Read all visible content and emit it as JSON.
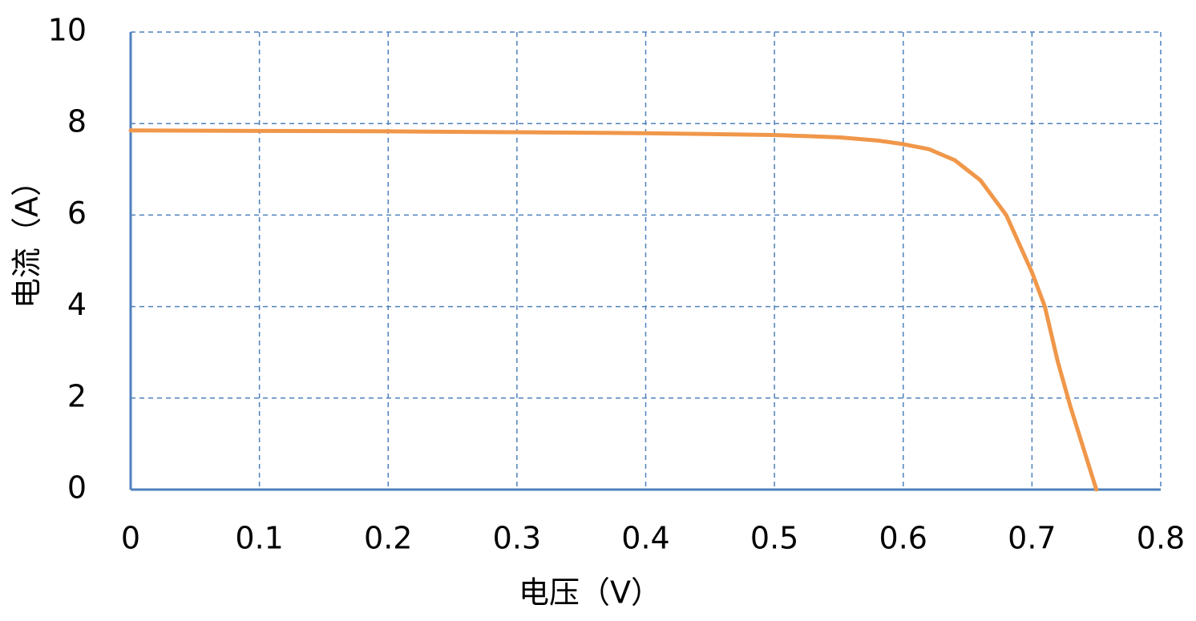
{
  "chart_data": {
    "type": "line",
    "x_label": "电压（V）",
    "y_label": "电流（A）",
    "x": [
      0,
      0.1,
      0.2,
      0.3,
      0.4,
      0.5,
      0.55,
      0.58,
      0.6,
      0.62,
      0.64,
      0.66,
      0.68,
      0.7,
      0.71,
      0.72,
      0.73,
      0.74,
      0.75
    ],
    "series": [
      {
        "color": "#f0974a",
        "values": [
          7.85,
          7.84,
          7.83,
          7.81,
          7.79,
          7.75,
          7.7,
          7.63,
          7.55,
          7.44,
          7.2,
          6.76,
          6.0,
          4.75,
          4.0,
          2.8,
          1.8,
          0.9,
          0
        ]
      }
    ],
    "xlim": [
      0,
      0.8
    ],
    "xticks": [
      0,
      0.1,
      0.2,
      0.3,
      0.4,
      0.5,
      0.6,
      0.7,
      0.8
    ],
    "ylim": [
      0,
      10
    ],
    "yticks": [
      0,
      2,
      4,
      6,
      8,
      10
    ],
    "grid": true
  }
}
